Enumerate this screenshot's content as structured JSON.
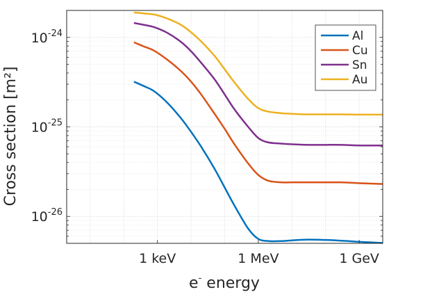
{
  "chart_data": {
    "type": "line",
    "xlabel": "e- energy",
    "xlabel_parts": {
      "base": "e",
      "sup": "-",
      "rest": " energy"
    },
    "ylabel": "Cross section [m²]",
    "x_scale": "log",
    "y_scale": "log",
    "xlim": [
      0.002,
      5000000
    ],
    "ylim": [
      5e-27,
      2e-24
    ],
    "grid": true,
    "legend_position": "top-right",
    "x_ticks": [
      {
        "value": 1,
        "label": "1 keV"
      },
      {
        "value": 1000,
        "label": "1 MeV"
      },
      {
        "value": 1000000,
        "label": "1 GeV"
      }
    ],
    "y_ticks": [
      {
        "value": 1e-26,
        "base": "10",
        "exp": "-26"
      },
      {
        "value": 1e-25,
        "base": "10",
        "exp": "-25"
      },
      {
        "value": 1e-24,
        "base": "10",
        "exp": "-24"
      }
    ],
    "x": [
      0.2,
      0.4,
      0.8,
      2,
      5,
      10,
      20,
      50,
      100,
      200,
      500,
      1000,
      2000,
      5000,
      10000,
      30000,
      100000,
      300000,
      1000000,
      5000000
    ],
    "series": [
      {
        "name": "Al",
        "color": "#0072BD",
        "values": [
          3.2e-25,
          2.85e-25,
          2.5e-25,
          1.85e-25,
          1.25e-25,
          8.8e-26,
          6e-26,
          3.4e-26,
          2.1e-26,
          1.3e-26,
          7.3e-27,
          5.6e-27,
          5.3e-27,
          5.3e-27,
          5.4e-27,
          5.5e-27,
          5.45e-27,
          5.35e-27,
          5.2e-27,
          5.05e-27
        ]
      },
      {
        "name": "Cu",
        "color": "#D95319",
        "values": [
          8.8e-25,
          7.9e-25,
          7.1e-25,
          5.6e-25,
          4.2e-25,
          3.2e-25,
          2.3e-25,
          1.4e-25,
          9.5e-26,
          6.3e-26,
          3.9e-26,
          2.9e-26,
          2.5e-26,
          2.4e-26,
          2.4e-26,
          2.4e-26,
          2.4e-26,
          2.4e-26,
          2.35e-26,
          2.3e-26
        ]
      },
      {
        "name": "Sn",
        "color": "#7E2F8E",
        "values": [
          1.45e-24,
          1.38e-24,
          1.3e-24,
          1.12e-24,
          8.9e-25,
          7e-25,
          5.2e-25,
          3.4e-25,
          2.3e-25,
          1.55e-25,
          1e-25,
          7.5e-26,
          6.7e-26,
          6.5e-26,
          6.4e-26,
          6.3e-26,
          6.3e-26,
          6.3e-26,
          6.2e-26,
          6.2e-26
        ]
      },
      {
        "name": "Au",
        "color": "#EDB120",
        "values": [
          1.9e-24,
          1.85e-24,
          1.8e-24,
          1.62e-24,
          1.38e-24,
          1.14e-24,
          9e-25,
          6.2e-25,
          4.4e-25,
          3.1e-25,
          2.05e-25,
          1.62e-25,
          1.48e-25,
          1.42e-25,
          1.4e-25,
          1.38e-25,
          1.38e-25,
          1.38e-25,
          1.37e-25,
          1.37e-25
        ]
      }
    ]
  }
}
